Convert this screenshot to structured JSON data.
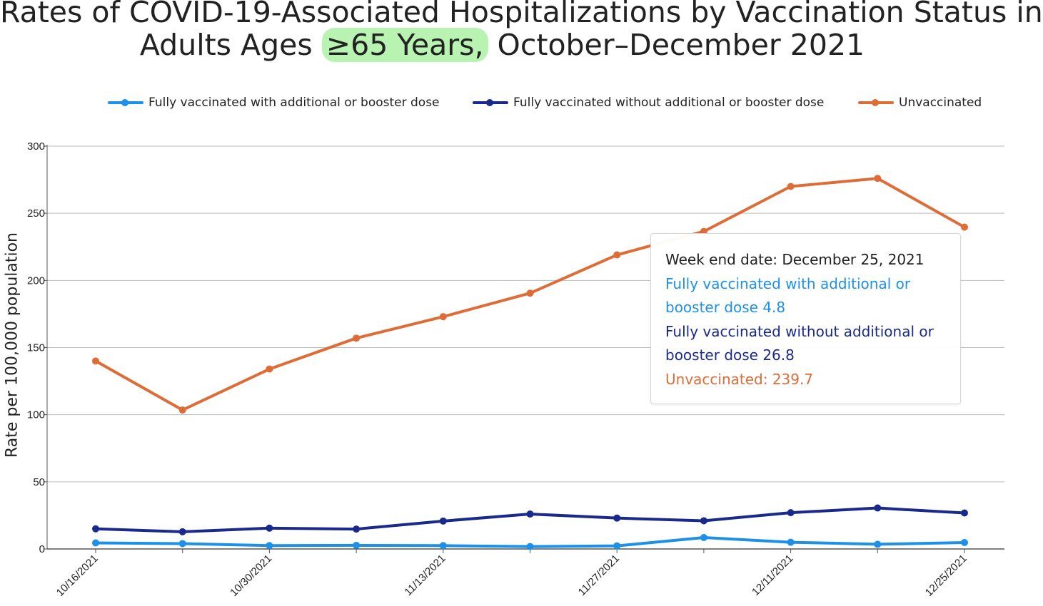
{
  "title": {
    "line1": "Rates of COVID-19-Associated Hospitalizations by Vaccination Status in",
    "line2_pre": "Adults Ages ",
    "line2_highlight": "≥65 Years,",
    "line2_post": " October–December 2021"
  },
  "colors": {
    "booster": "#1e90e8",
    "no_booster": "#1a2a8c",
    "unvaccinated": "#de6c37",
    "highlight": "#b8f3b1"
  },
  "chart_data": {
    "type": "line",
    "ylabel": "Rate per 100,000 population",
    "xlabel": "",
    "ylim": [
      0,
      300
    ],
    "yticks": [
      0,
      50,
      100,
      150,
      200,
      250,
      300
    ],
    "grid": true,
    "legend_position": "top",
    "x": [
      "10/16/2021",
      "10/23/2021",
      "10/30/2021",
      "11/6/2021",
      "11/13/2021",
      "11/20/2021",
      "11/27/2021",
      "12/4/2021",
      "12/11/2021",
      "12/18/2021",
      "12/25/2021"
    ],
    "xtick_labels": [
      "10/16/2021",
      "10/30/2021",
      "11/13/2021",
      "11/27/2021",
      "12/11/2021",
      "12/25/2021"
    ],
    "series": [
      {
        "key": "booster",
        "name": "Fully vaccinated with additional or booster dose",
        "values": [
          4.5,
          4.0,
          2.5,
          2.7,
          2.5,
          1.8,
          2.3,
          8.5,
          5.0,
          3.5,
          4.8
        ]
      },
      {
        "key": "no_booster",
        "name": "Fully vaccinated without additional or booster dose",
        "values": [
          15.0,
          12.8,
          15.5,
          14.8,
          20.8,
          26.0,
          23.0,
          21.0,
          27.0,
          30.5,
          26.8
        ]
      },
      {
        "key": "unvaccinated",
        "name": "Unvaccinated",
        "values": [
          140.0,
          103.5,
          134.0,
          157.0,
          173.0,
          190.5,
          219.0,
          236.5,
          270.0,
          276.0,
          239.7
        ]
      }
    ]
  },
  "tooltip": {
    "header": "Week end date: December 25, 2021",
    "booster_line": "Fully vaccinated with additional or booster dose 4.8",
    "no_booster_line": "Fully vaccinated without additional or booster dose 26.8",
    "unvaccinated_line": "Unvaccinated: 239.7"
  }
}
